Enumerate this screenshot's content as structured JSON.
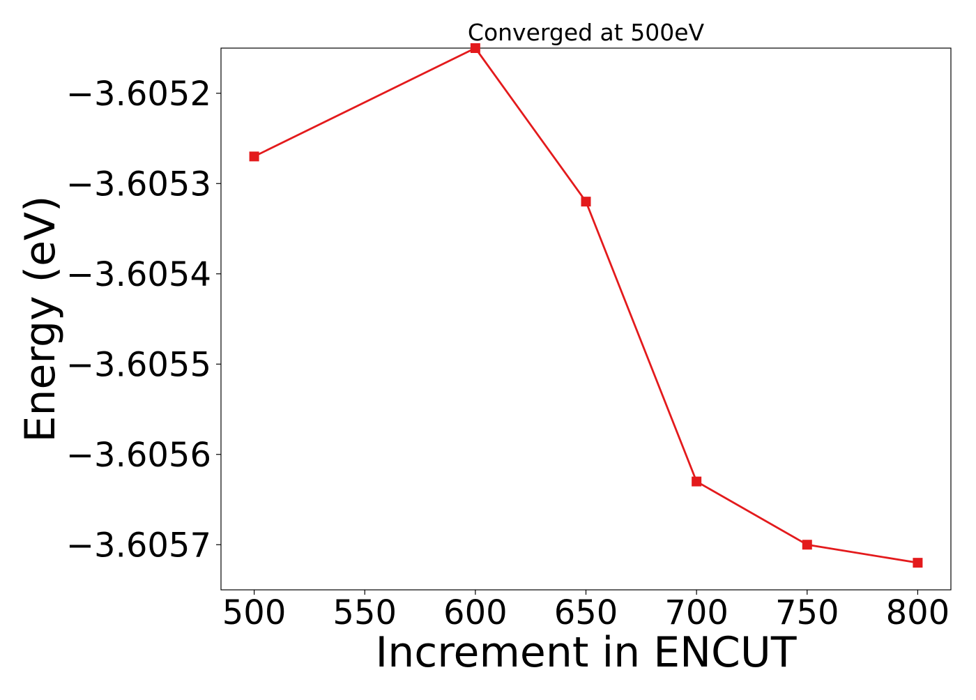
{
  "chart_data": {
    "type": "line",
    "title": "Converged at 500eV",
    "xlabel": "Increment in ENCUT",
    "ylabel": "Energy (eV)",
    "x": [
      500,
      600,
      650,
      700,
      750,
      800
    ],
    "xlim": [
      485,
      815
    ],
    "ylim": [
      -3.60575,
      -3.60515
    ],
    "x_ticks": [
      500,
      550,
      600,
      650,
      700,
      750,
      800
    ],
    "x_tick_labels": [
      "500",
      "550",
      "600",
      "650",
      "700",
      "750",
      "800"
    ],
    "y_ticks": [
      -3.6052,
      -3.6053,
      -3.6054,
      -3.6055,
      -3.6056,
      -3.6057
    ],
    "y_tick_labels": [
      "−3.6052",
      "−3.6053",
      "−3.6054",
      "−3.6055",
      "−3.6056",
      "−3.6057"
    ],
    "series": [
      {
        "values": [
          -3.60527,
          -3.60515,
          -3.60532,
          -3.60563,
          -3.6057,
          -3.60572
        ],
        "color": "#e31a1c",
        "marker": "square"
      }
    ],
    "grid": false,
    "legend": false
  }
}
